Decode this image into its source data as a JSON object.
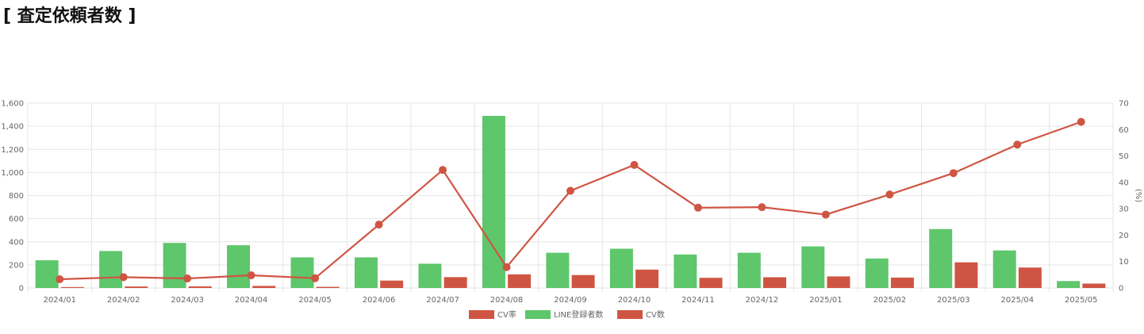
{
  "page": {
    "title": "[ 査定依頼者数 ]"
  },
  "colors": {
    "line_green": "#5ec66b",
    "cv_red": "#cf5543",
    "grid": "#e6e6e6",
    "text": "#666666"
  },
  "chart_data": {
    "type": "bar",
    "categories": [
      "2024/01",
      "2024/02",
      "2024/03",
      "2024/04",
      "2024/05",
      "2024/06",
      "2024/07",
      "2024/08",
      "2024/09",
      "2024/10",
      "2024/11",
      "2024/12",
      "2025/01",
      "2025/02",
      "2025/03",
      "2025/04",
      "2025/05"
    ],
    "series": [
      {
        "name": "CV率",
        "type": "line",
        "axis": "right",
        "values": [
          3.3,
          4.1,
          3.6,
          4.8,
          3.7,
          24.0,
          44.7,
          7.9,
          36.8,
          46.6,
          30.4,
          30.6,
          27.8,
          35.4,
          43.5,
          54.3,
          62.9
        ]
      },
      {
        "name": "LINE登録者数",
        "type": "bar",
        "axis": "left",
        "values": [
          240,
          320,
          390,
          370,
          265,
          265,
          210,
          1490,
          305,
          340,
          290,
          305,
          360,
          255,
          510,
          325,
          60
        ]
      },
      {
        "name": "CV数",
        "type": "bar",
        "axis": "left",
        "values": [
          8,
          13,
          14,
          18,
          10,
          64,
          94,
          118,
          112,
          159,
          88,
          93,
          100,
          90,
          222,
          177,
          38
        ]
      }
    ],
    "y_left": {
      "min": 0,
      "max": 1600,
      "ticks": [
        0,
        200,
        400,
        600,
        800,
        1000,
        1200,
        1400,
        1600
      ],
      "tick_labels": [
        "0",
        "200",
        "400",
        "600",
        "800",
        "1,000",
        "1,200",
        "1,400",
        "1,600"
      ]
    },
    "y_right": {
      "min": 0,
      "max": 70,
      "ticks": [
        0,
        10,
        20,
        30,
        40,
        50,
        60,
        70
      ],
      "tick_labels": [
        "0",
        "10",
        "20",
        "30",
        "40",
        "50",
        "60",
        "70"
      ],
      "label": "(%)"
    },
    "grid": true,
    "legend": {
      "position": "bottom",
      "items": [
        "CV率",
        "LINE登録者数",
        "CV数"
      ]
    }
  }
}
